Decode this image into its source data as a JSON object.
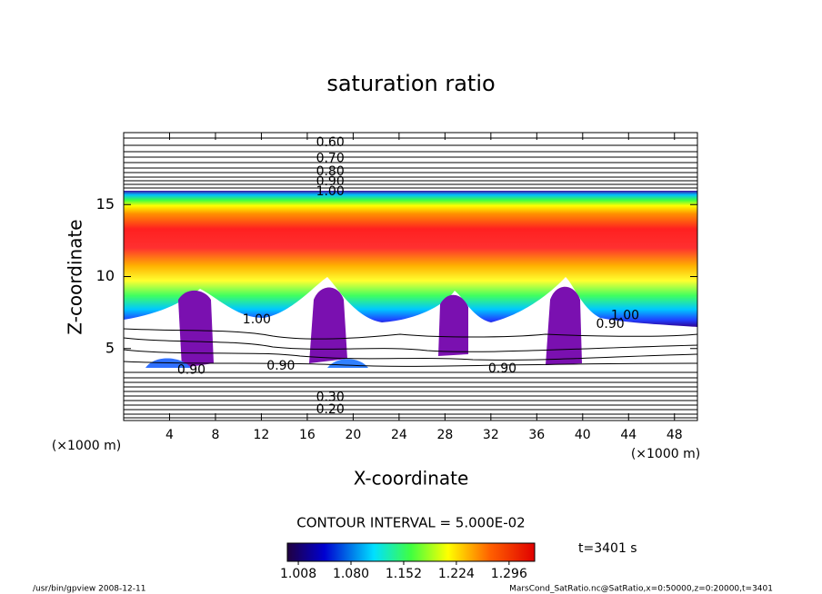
{
  "chart_data": {
    "type": "contour",
    "title": "saturation ratio",
    "x_label": "X-coordinate",
    "y_label": "Z-coordinate",
    "x_unit": "(×1000 m)",
    "y_unit": "(×1000 m)",
    "xlim": [
      0,
      50
    ],
    "xticks": [
      4,
      8,
      12,
      16,
      20,
      24,
      28,
      32,
      36,
      40,
      44,
      48
    ],
    "ylim": [
      0,
      20
    ],
    "yticks": [
      5,
      10,
      15
    ],
    "contour_interval": "CONTOUR INTERVAL = 5.000E-02",
    "contour_labels": [
      {
        "value": 0.6,
        "label": "0.60",
        "x": 18,
        "z": 19.3
      },
      {
        "value": 0.7,
        "label": "0.70",
        "x": 18,
        "z": 18.2
      },
      {
        "value": 0.8,
        "label": "0.80",
        "x": 18,
        "z": 17.3
      },
      {
        "value": 0.9,
        "label": "0.90",
        "x": 18,
        "z": 16.6
      },
      {
        "value": 1.0,
        "label": "1.00",
        "x": 18,
        "z": 15.9
      },
      {
        "value": 1.0,
        "label": "1.00",
        "x": 11.6,
        "z": 7.0
      },
      {
        "value": 1.0,
        "label": "1.00",
        "x": 43.7,
        "z": 7.3
      },
      {
        "value": 0.9,
        "label": "0.90",
        "x": 42.4,
        "z": 6.7
      },
      {
        "value": 0.9,
        "label": "0.90",
        "x": 13.7,
        "z": 3.8
      },
      {
        "value": 0.9,
        "label": "0.90",
        "x": 33,
        "z": 3.6
      },
      {
        "value": 0.9,
        "label": "0.90",
        "x": 5.9,
        "z": 3.5
      },
      {
        "value": 0.3,
        "label": "0.30",
        "x": 18,
        "z": 1.6
      },
      {
        "value": 0.2,
        "label": "0.20",
        "x": 18,
        "z": 0.75
      }
    ],
    "colorbar": {
      "clim": [
        0.993,
        1.331
      ],
      "ticks": [
        1.008,
        {
          "value": 1.08,
          "label": "1.080"
        },
        1.152,
        1.224,
        1.296
      ]
    },
    "time_label": "t=3401 s",
    "footer_left": "/usr/bin/gpview   2008-12-11",
    "footer_right": "MarsCond_SatRatio.nc@SatRatio,x=0:50000,z=0:20000,t=3401"
  }
}
